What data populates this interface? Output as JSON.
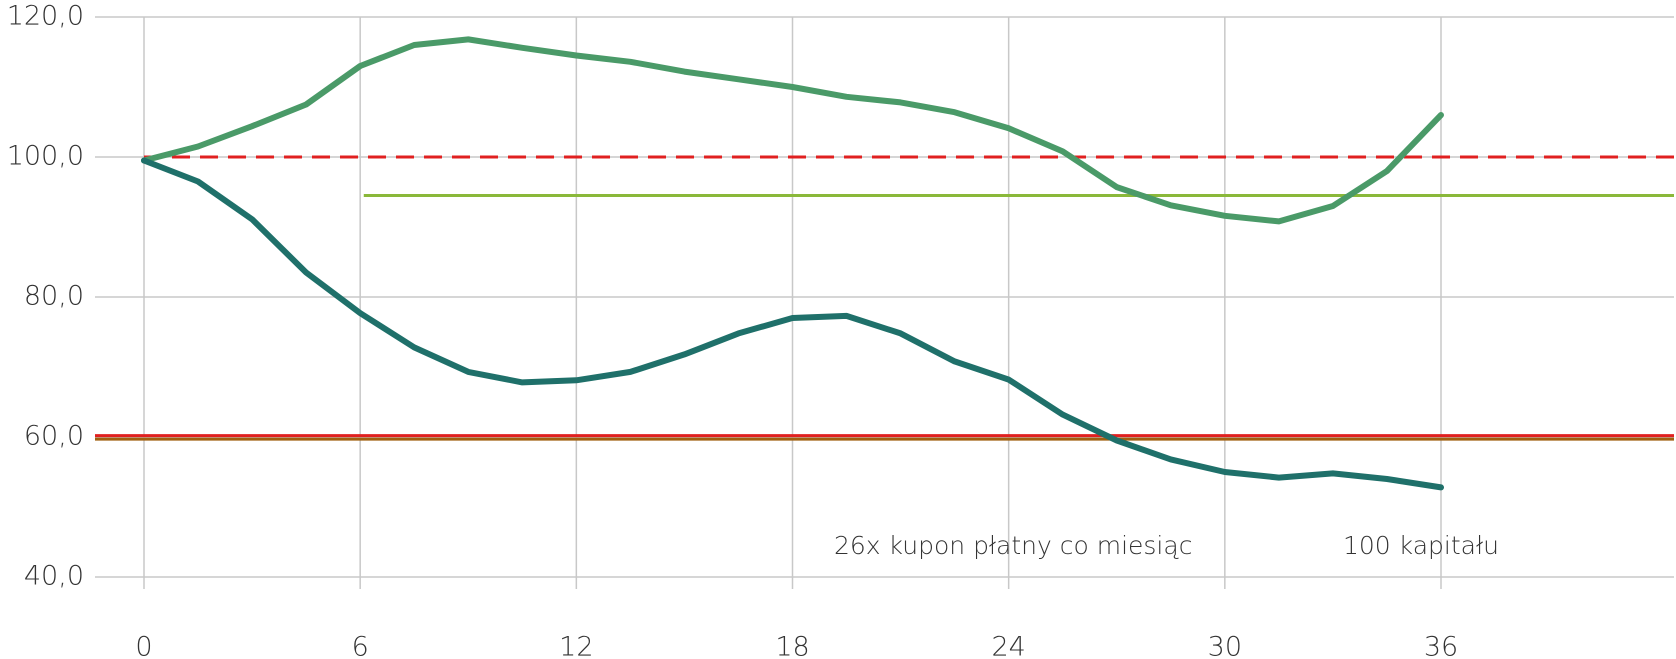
{
  "chart_data": {
    "type": "line",
    "x": [
      0,
      1.5,
      3,
      4.5,
      6,
      7.5,
      9,
      10.5,
      12,
      13.5,
      15,
      16.5,
      18,
      19.5,
      21,
      22.5,
      24,
      25.5,
      27,
      28.5,
      30,
      31.5,
      33,
      34.5,
      36
    ],
    "series": [
      {
        "color": "#4a9a68",
        "values": [
          99.5,
          101.5,
          104.4,
          107.5,
          113,
          116,
          116.8,
          115.6,
          114.5,
          113.6,
          112.2,
          111.1,
          110,
          108.6,
          107.8,
          106.4,
          104.1,
          100.8,
          95.7,
          93.1,
          91.6,
          90.8,
          93,
          98,
          106
        ]
      },
      {
        "color": "#1f706a",
        "values": [
          99.5,
          96.5,
          91.1,
          83.5,
          77.7,
          72.8,
          69.3,
          67.8,
          68.1,
          69.3,
          71.8,
          74.8,
          77,
          77.3,
          74.8,
          70.8,
          68.2,
          63.2,
          59.5,
          56.8,
          55,
          54.2,
          54.8,
          54,
          52.8
        ]
      }
    ],
    "reference_lines": [
      {
        "value": 100,
        "color": "#e02020",
        "dashed": true,
        "from": 0
      },
      {
        "value": 94.5,
        "color": "#8ab83a",
        "dashed": false,
        "from": 6.1
      },
      {
        "value": 60.2,
        "color": "#e02020",
        "dashed": false,
        "from": -4
      },
      {
        "value": 59.7,
        "color": "#a06010",
        "dashed": false,
        "from": -4
      }
    ],
    "annotations": [
      "26x kupon płatny co miesiąc",
      "100 kapitału"
    ],
    "xlim": [
      0,
      42.5
    ],
    "ylim": [
      40,
      120
    ],
    "xticks": [
      0,
      6,
      12,
      18,
      24,
      30,
      36
    ],
    "yticks": [
      {
        "value": 40,
        "label": "40,0"
      },
      {
        "value": 60,
        "label": "60,0"
      },
      {
        "value": 80,
        "label": "80,0"
      },
      {
        "value": 100,
        "label": "100,0"
      },
      {
        "value": 120,
        "label": "120,0"
      }
    ],
    "grid": true
  }
}
